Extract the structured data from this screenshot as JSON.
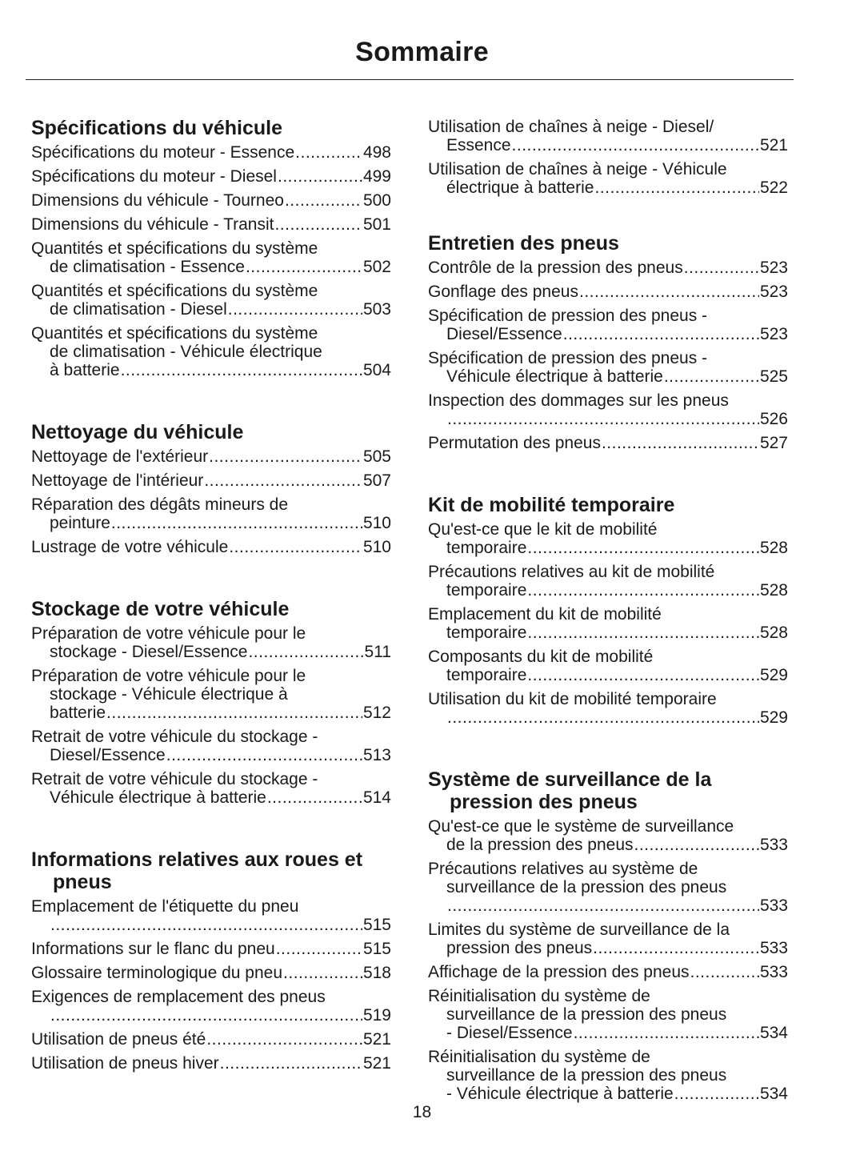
{
  "title": "Sommaire",
  "page_number": "18",
  "left_sections": [
    {
      "heading": "Spécifications du véhicule",
      "entries": [
        {
          "lines": [
            "Spécifications du moteur - Essence"
          ],
          "page": "498"
        },
        {
          "lines": [
            "Spécifications du moteur - Diesel"
          ],
          "page": "499"
        },
        {
          "lines": [
            "Dimensions du véhicule - Tourneo"
          ],
          "page": "500"
        },
        {
          "lines": [
            "Dimensions du véhicule - Transit"
          ],
          "page": "501"
        },
        {
          "lines": [
            "Quantités et spécifications du système",
            "de climatisation - Essence"
          ],
          "page": "502"
        },
        {
          "lines": [
            "Quantités et spécifications du système",
            "de climatisation - Diesel"
          ],
          "page": "503"
        },
        {
          "lines": [
            "Quantités et spécifications du système",
            "de climatisation - Véhicule électrique",
            "à batterie"
          ],
          "page": "504"
        }
      ]
    },
    {
      "heading": "Nettoyage du véhicule",
      "entries": [
        {
          "lines": [
            "Nettoyage de l'extérieur"
          ],
          "page": "505"
        },
        {
          "lines": [
            "Nettoyage de l'intérieur"
          ],
          "page": "507"
        },
        {
          "lines": [
            "Réparation des dégâts mineurs de",
            "peinture"
          ],
          "page": "510"
        },
        {
          "lines": [
            "Lustrage de votre véhicule"
          ],
          "page": "510"
        }
      ]
    },
    {
      "heading": "Stockage de votre véhicule",
      "entries": [
        {
          "lines": [
            "Préparation de votre véhicule pour le",
            "stockage - Diesel/Essence"
          ],
          "page": "511"
        },
        {
          "lines": [
            "Préparation de votre véhicule pour le",
            "stockage - Véhicule électrique à",
            "batterie"
          ],
          "page": "512"
        },
        {
          "lines": [
            "Retrait de votre véhicule du stockage -",
            "Diesel/Essence"
          ],
          "page": "513"
        },
        {
          "lines": [
            "Retrait de votre véhicule du stockage -",
            "Véhicule électrique à batterie"
          ],
          "page": "514"
        }
      ]
    },
    {
      "heading": "Informations relatives aux roues et pneus",
      "entries": [
        {
          "lines": [
            "Emplacement de l'étiquette du pneu",
            ""
          ],
          "page": "515"
        },
        {
          "lines": [
            "Informations sur le flanc du pneu"
          ],
          "page": "515"
        },
        {
          "lines": [
            "Glossaire terminologique du pneu"
          ],
          "page": "518"
        },
        {
          "lines": [
            "Exigences de remplacement des pneus",
            ""
          ],
          "page": "519"
        },
        {
          "lines": [
            "Utilisation de pneus été"
          ],
          "page": "521"
        },
        {
          "lines": [
            "Utilisation de pneus hiver"
          ],
          "page": "521"
        }
      ]
    }
  ],
  "right_sections": [
    {
      "heading": "",
      "entries": [
        {
          "lines": [
            "Utilisation de chaînes à neige - Diesel/",
            "Essence"
          ],
          "page": "521"
        },
        {
          "lines": [
            "Utilisation de chaînes à neige - Véhicule",
            "électrique à batterie"
          ],
          "page": "522"
        }
      ]
    },
    {
      "heading": "Entretien des pneus",
      "entries": [
        {
          "lines": [
            "Contrôle de la pression des pneus"
          ],
          "page": "523"
        },
        {
          "lines": [
            "Gonflage des pneus"
          ],
          "page": "523"
        },
        {
          "lines": [
            "Spécification de pression des pneus -",
            "Diesel/Essence"
          ],
          "page": "523"
        },
        {
          "lines": [
            "Spécification de pression des pneus -",
            "Véhicule électrique à batterie"
          ],
          "page": "525"
        },
        {
          "lines": [
            "Inspection des dommages sur les pneus",
            ""
          ],
          "page": "526"
        },
        {
          "lines": [
            "Permutation des pneus"
          ],
          "page": "527"
        }
      ]
    },
    {
      "heading": "Kit de mobilité temporaire",
      "entries": [
        {
          "lines": [
            "Qu'est-ce que le kit de mobilité",
            "temporaire"
          ],
          "page": "528"
        },
        {
          "lines": [
            "Précautions relatives au kit de mobilité",
            "temporaire"
          ],
          "page": "528"
        },
        {
          "lines": [
            "Emplacement du kit de mobilité",
            "temporaire"
          ],
          "page": "528"
        },
        {
          "lines": [
            "Composants du kit de mobilité",
            "temporaire"
          ],
          "page": "529"
        },
        {
          "lines": [
            "Utilisation du kit de mobilité temporaire",
            ""
          ],
          "page": "529"
        }
      ]
    },
    {
      "heading": "Système de surveillance de la pression des pneus",
      "entries": [
        {
          "lines": [
            "Qu'est-ce que le système de surveillance",
            "de la pression des pneus"
          ],
          "page": "533"
        },
        {
          "lines": [
            "Précautions relatives au système de",
            "surveillance de la pression des pneus",
            ""
          ],
          "page": "533"
        },
        {
          "lines": [
            "Limites du système de surveillance de la",
            "pression des pneus"
          ],
          "page": "533"
        },
        {
          "lines": [
            "Affichage de la pression des pneus"
          ],
          "page": "533"
        },
        {
          "lines": [
            "Réinitialisation du système de",
            "surveillance de la pression des pneus",
            "- Diesel/Essence"
          ],
          "page": "534"
        },
        {
          "lines": [
            "Réinitialisation du système de",
            "surveillance de la pression des pneus",
            "- Véhicule électrique à batterie"
          ],
          "page": "534"
        }
      ]
    }
  ]
}
